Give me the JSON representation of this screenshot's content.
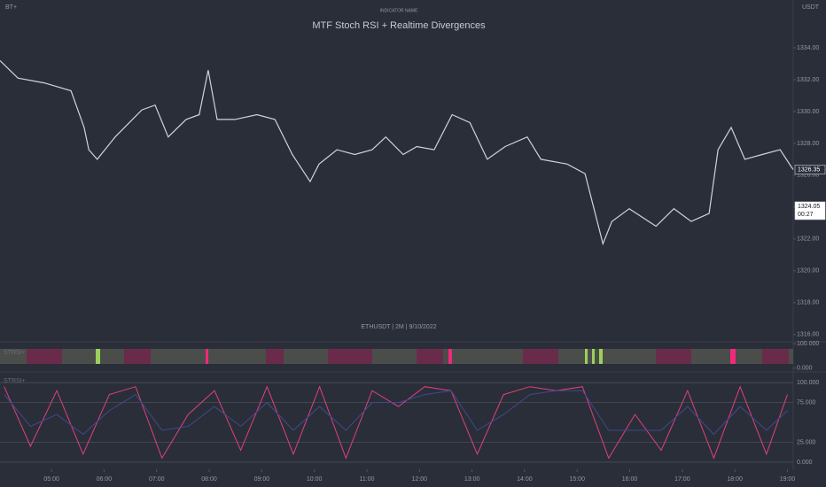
{
  "chart_data": [
    {
      "type": "line",
      "title": "MTF Stoch RSI + Realtime Divergences",
      "subtitle": "INDICATOR NAME",
      "corner_label": "BT+",
      "axis_unit": "USDT",
      "symbol": "ETHUSDT | 2M | 9/10/2022",
      "x": [
        4.02,
        4.36,
        4.86,
        5.37,
        5.62,
        5.71,
        5.87,
        6.21,
        6.72,
        6.97,
        7.22,
        7.56,
        7.81,
        7.98,
        8.15,
        8.49,
        8.91,
        9.25,
        9.58,
        9.92,
        10.09,
        10.43,
        10.77,
        11.1,
        11.36,
        11.69,
        11.95,
        12.28,
        12.62,
        12.96,
        13.29,
        13.63,
        14.05,
        14.31,
        14.81,
        15.15,
        15.32,
        15.49,
        15.66,
        15.99,
        16.5,
        16.84,
        17.17,
        17.51,
        17.68,
        17.93,
        18.19,
        18.52,
        18.86,
        19.11
      ],
      "series": [
        {
          "name": "ETHUSDT",
          "color": "#d1d4dc",
          "values": [
            1333.2,
            1332.1,
            1331.8,
            1331.3,
            1329,
            1327.6,
            1327,
            1328.4,
            1330.1,
            1330.4,
            1328.4,
            1329.5,
            1329.8,
            1332.6,
            1329.5,
            1329.5,
            1329.8,
            1329.5,
            1327.3,
            1325.6,
            1326.7,
            1327.6,
            1327.3,
            1327.6,
            1328.4,
            1327.3,
            1327.8,
            1327.6,
            1329.8,
            1329.3,
            1327,
            1327.8,
            1328.4,
            1327,
            1326.7,
            1326.1,
            1323.9,
            1321.7,
            1323.1,
            1323.9,
            1322.8,
            1323.9,
            1323.1,
            1323.6,
            1327.6,
            1329,
            1327,
            1327.3,
            1327.6,
            1326.35
          ]
        }
      ],
      "xlim": [
        4.02,
        19.11
      ],
      "ylim": [
        1315.6,
        1337
      ],
      "xticks": [
        {
          "value": 5,
          "label": "05:00"
        },
        {
          "value": 6,
          "label": "06:00"
        },
        {
          "value": 7,
          "label": "07:00"
        },
        {
          "value": 8,
          "label": "08:00"
        },
        {
          "value": 9,
          "label": "09:00"
        },
        {
          "value": 10,
          "label": "10:00"
        },
        {
          "value": 11,
          "label": "11:00"
        },
        {
          "value": 12,
          "label": "12:00"
        },
        {
          "value": 13,
          "label": "13:00"
        },
        {
          "value": 14,
          "label": "14:00"
        },
        {
          "value": 15,
          "label": "15:00"
        },
        {
          "value": 16,
          "label": "16:00"
        },
        {
          "value": 17,
          "label": "17:00"
        },
        {
          "value": 18,
          "label": "18:00"
        },
        {
          "value": 19,
          "label": "19:00"
        }
      ],
      "yticks": [
        {
          "value": 1316,
          "label": "1316.00"
        },
        {
          "value": 1318,
          "label": "1318.00"
        },
        {
          "value": 1320,
          "label": "1320.00"
        },
        {
          "value": 1322,
          "label": "1322.00"
        },
        {
          "value": 1324,
          "label": "1324.00"
        },
        {
          "value": 1326,
          "label": "1326.00"
        },
        {
          "value": 1328,
          "label": "1328.00"
        },
        {
          "value": 1330,
          "label": "1330.00"
        },
        {
          "value": 1332,
          "label": "1332.00"
        },
        {
          "value": 1334,
          "label": "1334.00"
        }
      ],
      "price_tags": [
        {
          "value": 1326.35,
          "label": "1326.35"
        },
        {
          "value": 1324.05,
          "label": "1324.05",
          "countdown": "00:27"
        }
      ]
    },
    {
      "type": "heatstrip",
      "label": "STRSI+",
      "ylim": [
        -8,
        108
      ],
      "yticks": [
        {
          "value": 100,
          "label": "100.000"
        },
        {
          "value": 0,
          "label": "0.000"
        }
      ]
    },
    {
      "type": "line",
      "label": "STRSI+",
      "xlim": [
        4.02,
        19.11
      ],
      "ylim": [
        -9,
        108
      ],
      "x": [
        4.1,
        4.6,
        5.1,
        5.6,
        6.1,
        6.6,
        7.1,
        7.6,
        8.1,
        8.6,
        9.1,
        9.6,
        10.1,
        10.6,
        11.1,
        11.6,
        12.1,
        12.6,
        13.1,
        13.6,
        14.1,
        14.6,
        15.1,
        15.6,
        16.1,
        16.6,
        17.1,
        17.6,
        18.1,
        18.6,
        19.0
      ],
      "series": [
        {
          "name": "K",
          "color": "#e0407a",
          "values": [
            95,
            20,
            90,
            10,
            85,
            95,
            5,
            60,
            90,
            15,
            95,
            10,
            95,
            5,
            90,
            70,
            95,
            90,
            10,
            85,
            95,
            90,
            95,
            5,
            60,
            15,
            90,
            5,
            95,
            10,
            85
          ]
        },
        {
          "name": "D",
          "color": "#3f4a8c",
          "values": [
            85,
            45,
            60,
            35,
            65,
            85,
            40,
            45,
            70,
            45,
            75,
            40,
            70,
            40,
            75,
            75,
            85,
            90,
            40,
            60,
            85,
            90,
            90,
            40,
            40,
            40,
            70,
            35,
            70,
            40,
            65
          ]
        }
      ],
      "yticks": [
        {
          "value": 100,
          "label": "100.000"
        },
        {
          "value": 75,
          "label": "75.000"
        },
        {
          "value": 25,
          "label": "25.000"
        },
        {
          "value": 0,
          "label": "0.000"
        }
      ]
    }
  ]
}
